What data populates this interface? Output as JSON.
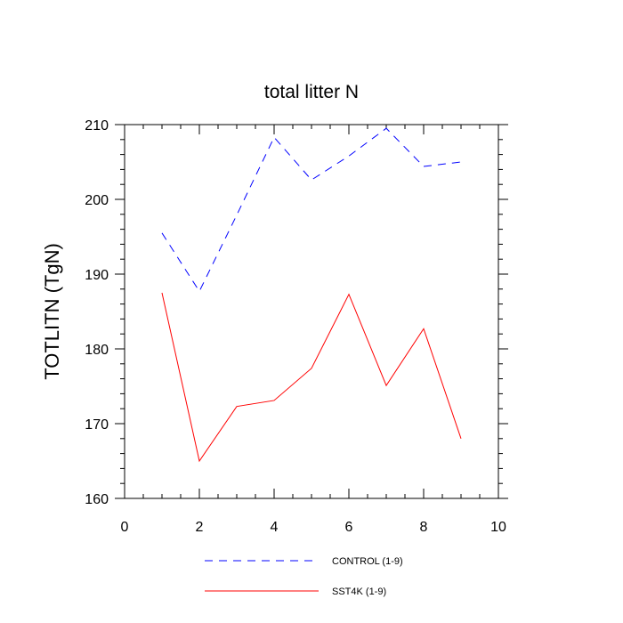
{
  "chart_data": {
    "type": "line",
    "title": "total litter N",
    "xlabel": "",
    "ylabel": "TOTLITN  (TgN)",
    "xlim": [
      0,
      10
    ],
    "ylim": [
      160,
      210
    ],
    "x_ticks": [
      "0",
      "2",
      "4",
      "6",
      "8",
      "10"
    ],
    "y_ticks": [
      "160",
      "170",
      "180",
      "190",
      "200",
      "210"
    ],
    "grid": false,
    "legend_position": "bottom",
    "x": [
      1,
      2,
      3,
      4,
      5,
      6,
      7,
      8,
      9
    ],
    "series": [
      {
        "name": "CONTROL (1-9)",
        "color": "#0000ff",
        "line_style": "dashed",
        "values": [
          195.5,
          187.7,
          197.9,
          208.3,
          202.6,
          205.8,
          209.5,
          204.4,
          205.0
        ]
      },
      {
        "name": "SST4K (1-9)",
        "color": "#ff0000",
        "line_style": "solid",
        "values": [
          187.5,
          165.0,
          172.3,
          173.1,
          177.4,
          187.3,
          175.1,
          182.7,
          168.0
        ]
      }
    ]
  }
}
